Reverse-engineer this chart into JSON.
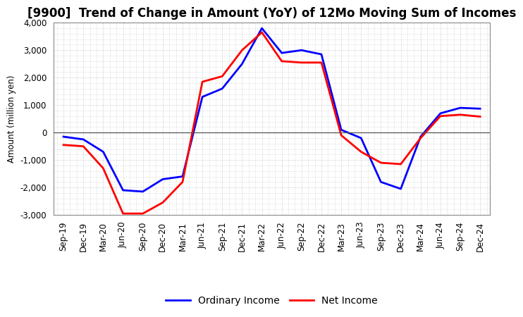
{
  "title": "[9900]  Trend of Change in Amount (YoY) of 12Mo Moving Sum of Incomes",
  "ylabel": "Amount (million yen)",
  "x_labels": [
    "Sep-19",
    "Dec-19",
    "Mar-20",
    "Jun-20",
    "Sep-20",
    "Dec-20",
    "Mar-21",
    "Jun-21",
    "Sep-21",
    "Dec-21",
    "Mar-22",
    "Jun-22",
    "Sep-22",
    "Dec-22",
    "Mar-23",
    "Jun-23",
    "Sep-23",
    "Dec-23",
    "Mar-24",
    "Jun-24",
    "Sep-24",
    "Dec-24"
  ],
  "ordinary_income": [
    -150,
    -250,
    -700,
    -2100,
    -2150,
    -1700,
    -1600,
    1300,
    1600,
    2500,
    3800,
    2900,
    3000,
    2850,
    100,
    -200,
    -1800,
    -2050,
    -150,
    700,
    900,
    870
  ],
  "net_income": [
    -450,
    -500,
    -1300,
    -2950,
    -2950,
    -2550,
    -1800,
    1850,
    2050,
    3000,
    3650,
    2600,
    2550,
    2550,
    -100,
    -700,
    -1100,
    -1150,
    -200,
    600,
    650,
    580
  ],
  "ylim": [
    -3000,
    4000
  ],
  "yticks": [
    -3000,
    -2000,
    -1000,
    0,
    1000,
    2000,
    3000,
    4000
  ],
  "ordinary_color": "#0000FF",
  "net_color": "#FF0000",
  "background_color": "#FFFFFF",
  "grid_color": "#BBBBBB",
  "legend_ordinary": "Ordinary Income",
  "legend_net": "Net Income",
  "title_fontsize": 12,
  "axis_fontsize": 8.5,
  "legend_fontsize": 10,
  "linewidth": 2.0
}
